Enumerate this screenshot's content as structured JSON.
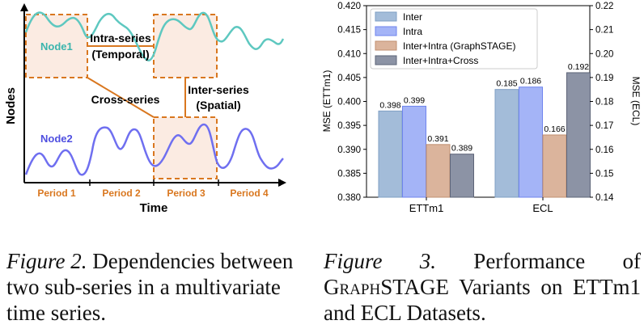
{
  "figure2": {
    "nodes": [
      {
        "label": "Node1",
        "color": "#5ec8c0"
      },
      {
        "label": "Node2",
        "color": "#6f6ff0"
      }
    ],
    "intra_label_line1": "Intra-series",
    "intra_label_line2": "(Temporal)",
    "inter_label_line1": "Inter-series",
    "inter_label_line2": "(Spatial)",
    "cross_label": "Cross-series",
    "periods": [
      "Period 1",
      "Period 2",
      "Period 3",
      "Period 4"
    ],
    "xlabel": "Time",
    "ylabel": "Nodes",
    "accent_color": "#d9771f"
  },
  "chart_data": {
    "type": "bar",
    "categories": [
      "ETTm1",
      "ECL"
    ],
    "series": [
      {
        "name": "Inter",
        "color": "#a3bcd9",
        "values": [
          0.398,
          0.185
        ],
        "labels": [
          "0.398",
          "0.185"
        ]
      },
      {
        "name": "Intra",
        "color": "#a4b4f7",
        "values": [
          0.399,
          0.186
        ],
        "labels": [
          "0.399",
          "0.186"
        ]
      },
      {
        "name": "Inter+Intra (GraphSTAGE)",
        "color": "#dbb49c",
        "values": [
          0.391,
          0.166
        ],
        "labels": [
          "0.391",
          "0.166"
        ]
      },
      {
        "name": "Inter+Intra+Cross",
        "color": "#8c93a5",
        "values": [
          0.389,
          0.192
        ],
        "labels": [
          "0.389",
          "0.192"
        ]
      }
    ],
    "ylabel_left": "MSE (ETTm1)",
    "ylabel_right": "MSE (ECL)",
    "ylim_left": [
      0.38,
      0.42
    ],
    "ylim_right": [
      0.14,
      0.22
    ],
    "yticks_left": [
      "0.380",
      "0.385",
      "0.390",
      "0.395",
      "0.400",
      "0.405",
      "0.410",
      "0.415",
      "0.420"
    ],
    "yticks_right": [
      "0.14",
      "0.15",
      "0.16",
      "0.17",
      "0.18",
      "0.19",
      "0.20",
      "0.21",
      "0.22"
    ],
    "legend_position": "top-left",
    "grid": false
  },
  "captions": {
    "fig2_label": "Figure 2.",
    "fig2_text": " Dependencies between two sub-series in a multivariate time series.",
    "fig3_label": "Figure 3.",
    "fig3_text_before": " Performance of ",
    "fig3_graph": "Graph",
    "fig3_stage": "STAGE",
    "fig3_text_after": " Variants on ETTm1 and ECL Datasets."
  }
}
